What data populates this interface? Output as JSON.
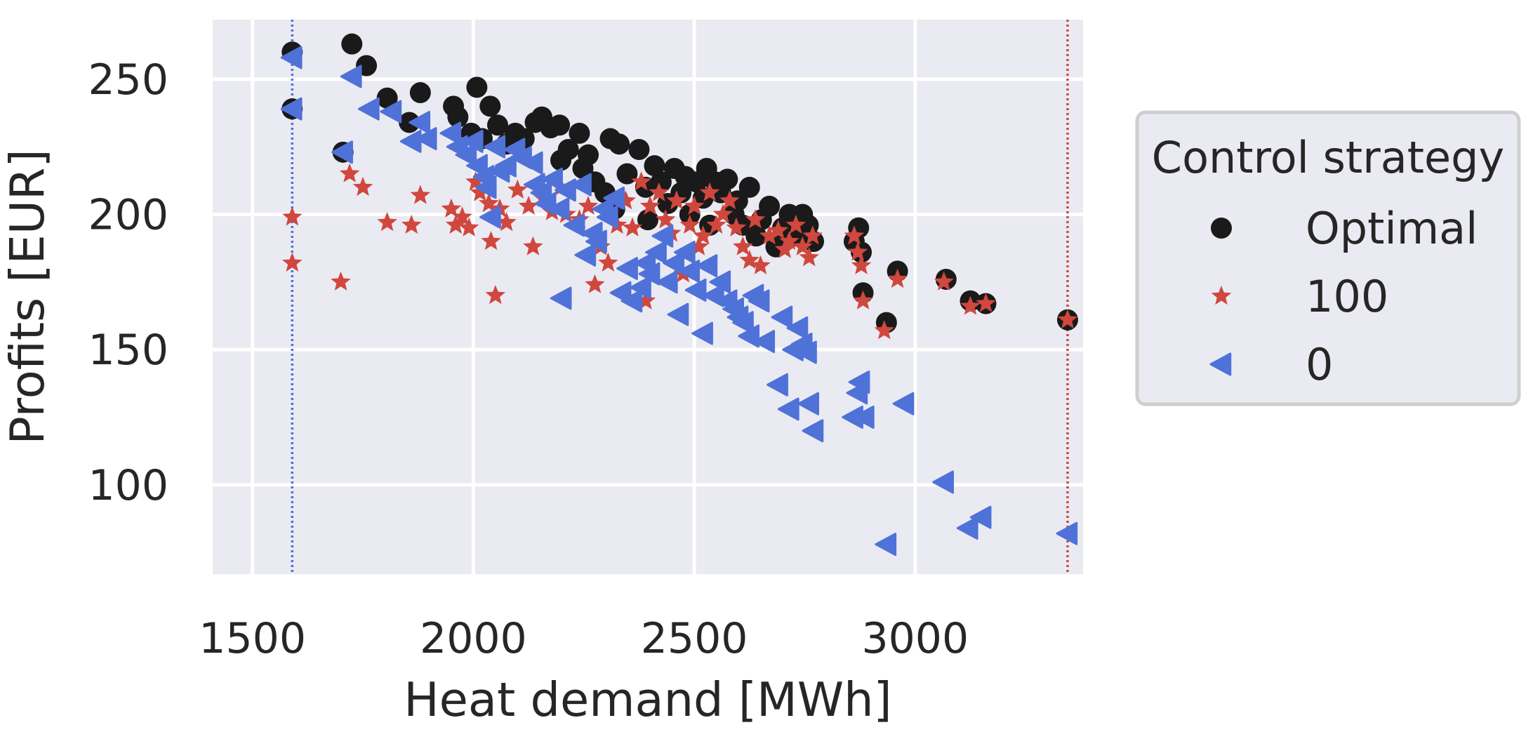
{
  "chart_data": {
    "type": "scatter",
    "title": "",
    "xlabel": "Heat demand [MWh]",
    "ylabel": "Profits [EUR]",
    "xlim": [
      1410,
      3380
    ],
    "ylim": [
      67,
      272
    ],
    "xticks": [
      "1500",
      "2000",
      "2500",
      "3000"
    ],
    "xtick_values": [
      1500,
      2000,
      2500,
      3000
    ],
    "yticks": [
      "100",
      "150",
      "200",
      "250"
    ],
    "ytick_values": [
      100,
      150,
      200,
      250
    ],
    "grid": true,
    "legend": {
      "title": "Control strategy",
      "placement": "right-outside"
    },
    "vlines": [
      {
        "x": 1590,
        "color": "#4f72d8",
        "style": "dotted"
      },
      {
        "x": 3345,
        "color": "#d0473d",
        "style": "dotted"
      }
    ],
    "series": [
      {
        "name": "Optimal",
        "marker": "circle",
        "color": "#1a1a1a",
        "points": [
          [
            1590,
            260
          ],
          [
            1590,
            239
          ],
          [
            1705,
            223
          ],
          [
            1725,
            263
          ],
          [
            1758,
            255
          ],
          [
            1805,
            243
          ],
          [
            1855,
            234
          ],
          [
            1880,
            245
          ],
          [
            1955,
            240
          ],
          [
            1965,
            236
          ],
          [
            1995,
            230
          ],
          [
            2008,
            247
          ],
          [
            2020,
            228
          ],
          [
            2038,
            240
          ],
          [
            2055,
            233
          ],
          [
            2075,
            226
          ],
          [
            2095,
            230
          ],
          [
            2115,
            228
          ],
          [
            2140,
            234
          ],
          [
            2155,
            236
          ],
          [
            2175,
            232
          ],
          [
            2195,
            233
          ],
          [
            2198,
            220
          ],
          [
            2215,
            224
          ],
          [
            2240,
            230
          ],
          [
            2248,
            217
          ],
          [
            2260,
            222
          ],
          [
            2275,
            212
          ],
          [
            2298,
            208
          ],
          [
            2310,
            228
          ],
          [
            2320,
            202
          ],
          [
            2330,
            226
          ],
          [
            2348,
            215
          ],
          [
            2375,
            224
          ],
          [
            2390,
            210
          ],
          [
            2395,
            198
          ],
          [
            2410,
            218
          ],
          [
            2425,
            212
          ],
          [
            2440,
            204
          ],
          [
            2455,
            217
          ],
          [
            2470,
            208
          ],
          [
            2480,
            214
          ],
          [
            2490,
            200
          ],
          [
            2505,
            212
          ],
          [
            2520,
            206
          ],
          [
            2528,
            217
          ],
          [
            2535,
            196
          ],
          [
            2548,
            212
          ],
          [
            2560,
            208
          ],
          [
            2575,
            213
          ],
          [
            2590,
            200
          ],
          [
            2598,
            205
          ],
          [
            2610,
            196
          ],
          [
            2625,
            210
          ],
          [
            2640,
            192
          ],
          [
            2652,
            198
          ],
          [
            2670,
            203
          ],
          [
            2685,
            188
          ],
          [
            2700,
            195
          ],
          [
            2715,
            200
          ],
          [
            2730,
            192
          ],
          [
            2745,
            200
          ],
          [
            2758,
            196
          ],
          [
            2770,
            190
          ],
          [
            2862,
            190
          ],
          [
            2872,
            195
          ],
          [
            2878,
            186
          ],
          [
            2882,
            171
          ],
          [
            2935,
            160
          ],
          [
            2960,
            179
          ],
          [
            3070,
            176
          ],
          [
            3125,
            168
          ],
          [
            3160,
            167
          ],
          [
            3345,
            161
          ]
        ]
      },
      {
        "name": "100",
        "marker": "star",
        "color": "#d0473d",
        "points": [
          [
            1590,
            199
          ],
          [
            1590,
            182
          ],
          [
            1700,
            175
          ],
          [
            1720,
            215
          ],
          [
            1750,
            210
          ],
          [
            1805,
            197
          ],
          [
            1860,
            196
          ],
          [
            1880,
            207
          ],
          [
            1950,
            202
          ],
          [
            1960,
            196
          ],
          [
            1975,
            199
          ],
          [
            1990,
            195
          ],
          [
            2005,
            212
          ],
          [
            2015,
            208
          ],
          [
            2035,
            204
          ],
          [
            2040,
            190
          ],
          [
            2050,
            170
          ],
          [
            2060,
            202
          ],
          [
            2075,
            197
          ],
          [
            2100,
            209
          ],
          [
            2125,
            203
          ],
          [
            2135,
            188
          ],
          [
            2158,
            206
          ],
          [
            2178,
            201
          ],
          [
            2198,
            210
          ],
          [
            2210,
            200
          ],
          [
            2240,
            198
          ],
          [
            2260,
            203
          ],
          [
            2275,
            174
          ],
          [
            2288,
            188
          ],
          [
            2305,
            182
          ],
          [
            2325,
            196
          ],
          [
            2345,
            205
          ],
          [
            2360,
            195
          ],
          [
            2380,
            212
          ],
          [
            2390,
            168
          ],
          [
            2400,
            203
          ],
          [
            2420,
            208
          ],
          [
            2435,
            198
          ],
          [
            2448,
            193
          ],
          [
            2460,
            205
          ],
          [
            2475,
            178
          ],
          [
            2490,
            196
          ],
          [
            2500,
            203
          ],
          [
            2510,
            188
          ],
          [
            2520,
            192
          ],
          [
            2535,
            208
          ],
          [
            2550,
            196
          ],
          [
            2565,
            200
          ],
          [
            2580,
            205
          ],
          [
            2595,
            195
          ],
          [
            2610,
            188
          ],
          [
            2625,
            183
          ],
          [
            2638,
            198
          ],
          [
            2650,
            181
          ],
          [
            2670,
            192
          ],
          [
            2690,
            194
          ],
          [
            2705,
            187
          ],
          [
            2715,
            190
          ],
          [
            2730,
            196
          ],
          [
            2745,
            188
          ],
          [
            2760,
            184
          ],
          [
            2768,
            192
          ],
          [
            2862,
            192
          ],
          [
            2870,
            186
          ],
          [
            2878,
            181
          ],
          [
            2882,
            168
          ],
          [
            2930,
            157
          ],
          [
            2960,
            176
          ],
          [
            3065,
            175
          ],
          [
            3125,
            166
          ],
          [
            3160,
            167
          ],
          [
            3345,
            161
          ]
        ]
      },
      {
        "name": "0",
        "marker": "triangle-left",
        "color": "#4f72d8",
        "points": [
          [
            1590,
            258
          ],
          [
            1590,
            239
          ],
          [
            1705,
            223
          ],
          [
            1725,
            251
          ],
          [
            1765,
            239
          ],
          [
            1815,
            238
          ],
          [
            1860,
            227
          ],
          [
            1880,
            234
          ],
          [
            1895,
            228
          ],
          [
            1950,
            230
          ],
          [
            1965,
            225
          ],
          [
            1985,
            222
          ],
          [
            2000,
            227
          ],
          [
            2010,
            218
          ],
          [
            2025,
            214
          ],
          [
            2030,
            210
          ],
          [
            2040,
            199
          ],
          [
            2050,
            225
          ],
          [
            2060,
            216
          ],
          [
            2075,
            218
          ],
          [
            2095,
            224
          ],
          [
            2110,
            221
          ],
          [
            2135,
            219
          ],
          [
            2140,
            211
          ],
          [
            2155,
            208
          ],
          [
            2165,
            204
          ],
          [
            2180,
            213
          ],
          [
            2195,
            202
          ],
          [
            2210,
            209
          ],
          [
            2200,
            169
          ],
          [
            2230,
            196
          ],
          [
            2245,
            211
          ],
          [
            2255,
            185
          ],
          [
            2270,
            193
          ],
          [
            2280,
            190
          ],
          [
            2295,
            202
          ],
          [
            2305,
            199
          ],
          [
            2320,
            206
          ],
          [
            2335,
            171
          ],
          [
            2350,
            180
          ],
          [
            2360,
            168
          ],
          [
            2380,
            173
          ],
          [
            2390,
            182
          ],
          [
            2400,
            178
          ],
          [
            2415,
            186
          ],
          [
            2430,
            192
          ],
          [
            2440,
            175
          ],
          [
            2455,
            182
          ],
          [
            2465,
            163
          ],
          [
            2480,
            186
          ],
          [
            2490,
            179
          ],
          [
            2505,
            172
          ],
          [
            2520,
            156
          ],
          [
            2530,
            181
          ],
          [
            2545,
            170
          ],
          [
            2560,
            175
          ],
          [
            2575,
            168
          ],
          [
            2590,
            165
          ],
          [
            2600,
            162
          ],
          [
            2612,
            160
          ],
          [
            2625,
            155
          ],
          [
            2635,
            170
          ],
          [
            2648,
            168
          ],
          [
            2660,
            153
          ],
          [
            2690,
            137
          ],
          [
            2700,
            162
          ],
          [
            2715,
            128
          ],
          [
            2725,
            150
          ],
          [
            2735,
            158
          ],
          [
            2745,
            152
          ],
          [
            2755,
            149
          ],
          [
            2760,
            130
          ],
          [
            2770,
            120
          ],
          [
            2860,
            125
          ],
          [
            2870,
            134
          ],
          [
            2875,
            138
          ],
          [
            2885,
            125
          ],
          [
            2935,
            78
          ],
          [
            2975,
            130
          ],
          [
            3065,
            101
          ],
          [
            3120,
            84
          ],
          [
            3150,
            88
          ],
          [
            3345,
            82
          ]
        ]
      }
    ]
  }
}
